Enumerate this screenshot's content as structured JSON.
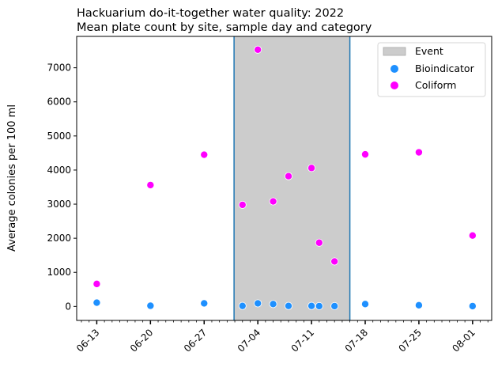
{
  "chart_data": {
    "type": "scatter",
    "title_line1": "Hackuarium do-it-together water quality: 2022",
    "title_line2": "Mean plate count by site, sample day and category",
    "xlabel": "",
    "ylabel": "Average colonies per 100 ml",
    "x_axis": {
      "type": "date",
      "start_day": 169,
      "end_day": 213.9,
      "ticks": [
        {
          "day": 164,
          "label": "06-13"
        },
        {
          "day": 171,
          "label": "06-20"
        },
        {
          "day": 178,
          "label": "06-27"
        },
        {
          "day": 185,
          "label": "07-04"
        },
        {
          "day": 192,
          "label": "07-11"
        },
        {
          "day": 199,
          "label": "07-18"
        },
        {
          "day": 206,
          "label": "07-25"
        },
        {
          "day": 213,
          "label": "08-01"
        }
      ]
    },
    "ylim": [
      -410,
      7920
    ],
    "yticks": [
      0,
      1000,
      2000,
      3000,
      4000,
      5000,
      6000,
      7000
    ],
    "event": {
      "name": "Event",
      "start_day": 181.9,
      "end_day": 197.0,
      "color": "#cccccc",
      "edge_color": "#1f77b4"
    },
    "legend": {
      "position": "top-right",
      "items": [
        {
          "label": "Event",
          "kind": "patch",
          "color": "#cccccc"
        },
        {
          "label": "Bioindicator",
          "kind": "marker",
          "color": "#1e90ff"
        },
        {
          "label": "Coliform",
          "kind": "marker",
          "color": "#ff00ff"
        }
      ]
    },
    "series": [
      {
        "name": "Bioindicator",
        "color": "#1e90ff",
        "points": [
          {
            "day": 164,
            "value": 110
          },
          {
            "day": 171,
            "value": 20
          },
          {
            "day": 178,
            "value": 90
          },
          {
            "day": 183,
            "value": 15
          },
          {
            "day": 185,
            "value": 90
          },
          {
            "day": 187,
            "value": 70
          },
          {
            "day": 189,
            "value": 15
          },
          {
            "day": 192,
            "value": 15
          },
          {
            "day": 193,
            "value": 10
          },
          {
            "day": 195,
            "value": 10
          },
          {
            "day": 199,
            "value": 70
          },
          {
            "day": 206,
            "value": 35
          },
          {
            "day": 213,
            "value": 10
          }
        ]
      },
      {
        "name": "Coliform",
        "color": "#ff00ff",
        "points": [
          {
            "day": 164,
            "value": 660
          },
          {
            "day": 171,
            "value": 3560
          },
          {
            "day": 178,
            "value": 4450
          },
          {
            "day": 183,
            "value": 2980
          },
          {
            "day": 185,
            "value": 7530
          },
          {
            "day": 187,
            "value": 3080
          },
          {
            "day": 189,
            "value": 3820
          },
          {
            "day": 192,
            "value": 4060
          },
          {
            "day": 193,
            "value": 1870
          },
          {
            "day": 195,
            "value": 1320
          },
          {
            "day": 199,
            "value": 4460
          },
          {
            "day": 206,
            "value": 4520
          },
          {
            "day": 213,
            "value": 2080
          }
        ]
      }
    ]
  }
}
